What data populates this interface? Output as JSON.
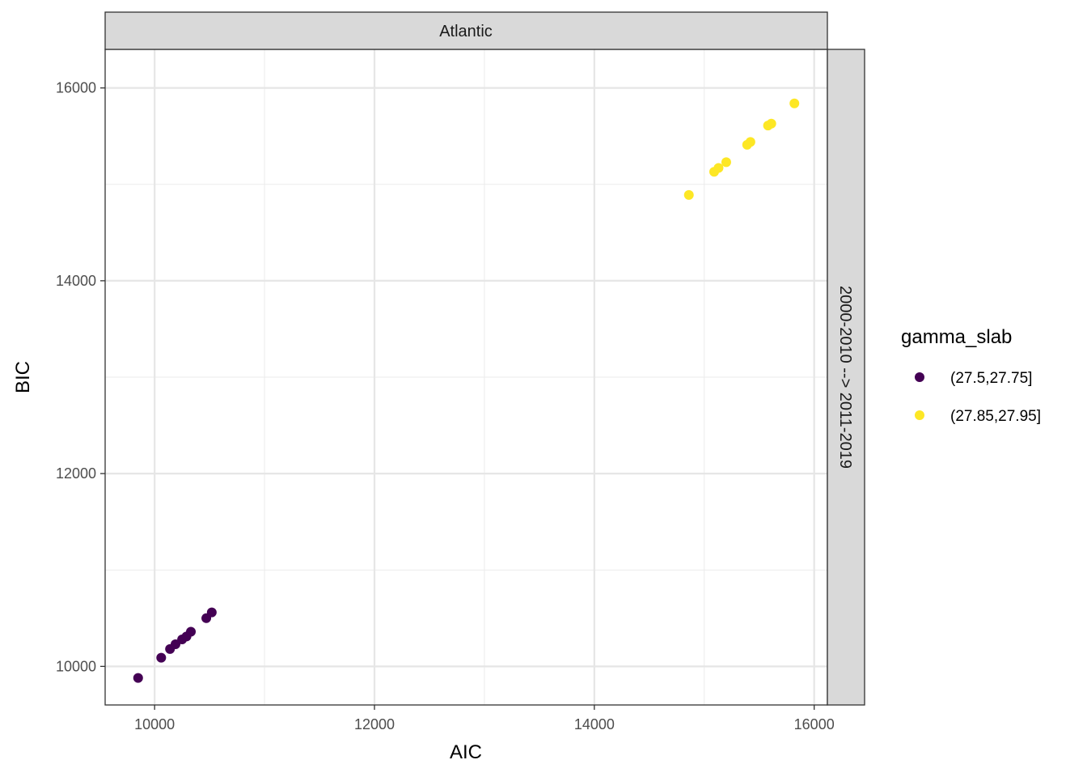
{
  "chart_data": {
    "type": "scatter",
    "facet_top": "Atlantic",
    "facet_right": "2000-2010 --> 2011-2019",
    "xlabel": "AIC",
    "ylabel": "BIC",
    "xlim": [
      9550,
      16120
    ],
    "ylim": [
      9600,
      16400
    ],
    "x_ticks": [
      10000,
      12000,
      14000,
      16000
    ],
    "y_ticks": [
      10000,
      12000,
      14000,
      16000
    ],
    "x_minor": [
      11000,
      13000,
      15000
    ],
    "y_minor": [
      11000,
      13000,
      15000
    ],
    "grid": true,
    "legend": {
      "title": "gamma_slab",
      "position": "right"
    },
    "series": [
      {
        "name": "(27.5,27.75]",
        "color": "#440154",
        "points": [
          {
            "x": 9850,
            "y": 9880
          },
          {
            "x": 10060,
            "y": 10090
          },
          {
            "x": 10140,
            "y": 10180
          },
          {
            "x": 10190,
            "y": 10230
          },
          {
            "x": 10250,
            "y": 10280
          },
          {
            "x": 10290,
            "y": 10310
          },
          {
            "x": 10330,
            "y": 10360
          },
          {
            "x": 10470,
            "y": 10500
          },
          {
            "x": 10520,
            "y": 10560
          }
        ]
      },
      {
        "name": "(27.85,27.95]",
        "color": "#fde725",
        "points": [
          {
            "x": 14860,
            "y": 14890
          },
          {
            "x": 15090,
            "y": 15130
          },
          {
            "x": 15130,
            "y": 15170
          },
          {
            "x": 15200,
            "y": 15230
          },
          {
            "x": 15390,
            "y": 15410
          },
          {
            "x": 15420,
            "y": 15440
          },
          {
            "x": 15580,
            "y": 15610
          },
          {
            "x": 15610,
            "y": 15630
          },
          {
            "x": 15820,
            "y": 15840
          }
        ]
      }
    ]
  }
}
